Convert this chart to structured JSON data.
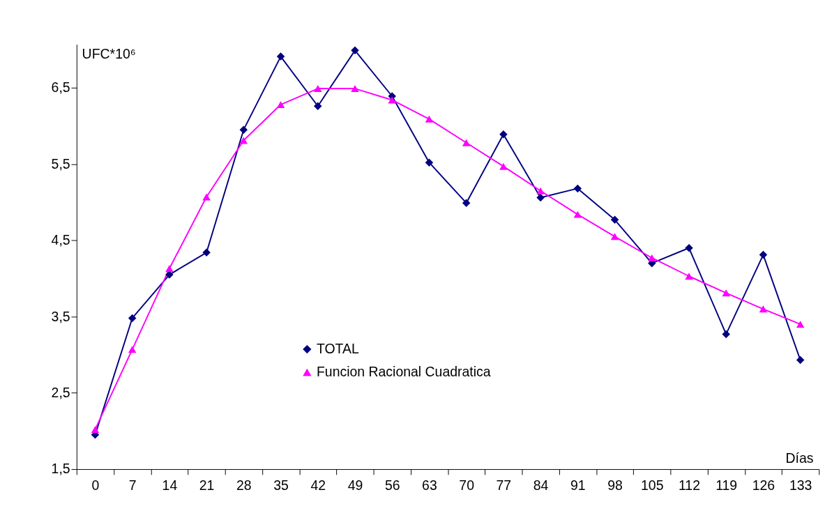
{
  "chart_data": {
    "type": "line",
    "xlabel": "Días",
    "ylabel": "UFC*10⁶",
    "categories": [
      "0",
      "7",
      "14",
      "21",
      "28",
      "35",
      "42",
      "49",
      "56",
      "63",
      "70",
      "77",
      "84",
      "91",
      "98",
      "105",
      "112",
      "119",
      "126",
      "133"
    ],
    "series": [
      {
        "name": "TOTAL",
        "color": "#000080",
        "marker": "diamond",
        "values": [
          1.95,
          3.48,
          4.05,
          4.34,
          5.95,
          6.91,
          6.26,
          6.99,
          6.39,
          5.52,
          4.99,
          5.89,
          5.06,
          5.18,
          4.77,
          4.2,
          4.4,
          3.27,
          4.31,
          2.93
        ]
      },
      {
        "name": "Funcion Racional Cuadratica",
        "color": "#ff00ff",
        "marker": "triangle",
        "values": [
          2.02,
          3.07,
          4.13,
          5.07,
          5.81,
          6.28,
          6.49,
          6.49,
          6.34,
          6.09,
          5.78,
          5.47,
          5.15,
          4.84,
          4.55,
          4.27,
          4.03,
          3.81,
          3.6,
          3.4
        ]
      }
    ],
    "ylim": [
      1.5,
      7.07
    ],
    "yticks": [
      {
        "value": 1.5,
        "label": "1,5"
      },
      {
        "value": 2.5,
        "label": "2,5"
      },
      {
        "value": 3.5,
        "label": "3,5"
      },
      {
        "value": 4.5,
        "label": "4,5"
      },
      {
        "value": 5.5,
        "label": "5,5"
      },
      {
        "value": 6.5,
        "label": "6,5"
      }
    ],
    "grid": false,
    "legend": "bottom",
    "line_style": "solid"
  }
}
